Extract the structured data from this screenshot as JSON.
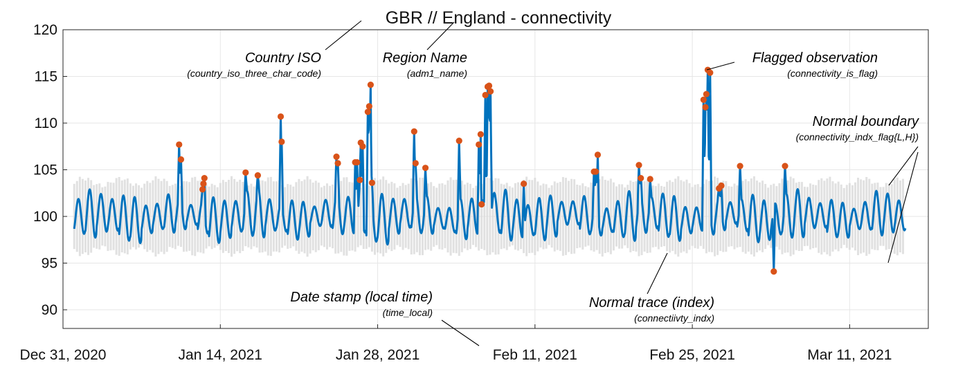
{
  "chart_data": {
    "type": "line",
    "title": "GBR // England - connectivity",
    "xlabel": "",
    "ylabel": "",
    "x_range": [
      "2020-12-31",
      "2021-03-18"
    ],
    "ylim": [
      88,
      120
    ],
    "y_ticks": [
      90,
      95,
      100,
      105,
      110,
      115,
      120
    ],
    "x_ticks": [
      {
        "date": "2020-12-31",
        "label": "Dec 31, 2020"
      },
      {
        "date": "2021-01-14",
        "label": "Jan 14, 2021"
      },
      {
        "date": "2021-01-28",
        "label": "Jan 28, 2021"
      },
      {
        "date": "2021-02-11",
        "label": "Feb 11, 2021"
      },
      {
        "date": "2021-02-25",
        "label": "Feb 25, 2021"
      },
      {
        "date": "2021-03-11",
        "label": "Mar 11, 2021"
      }
    ],
    "grid": true,
    "colors": {
      "trace": "#0072BD",
      "flag": "#D95319",
      "boundary": "#d9d9d9",
      "grid": "#e6e6e6"
    },
    "series": [
      {
        "role": "trace",
        "sampling": "hourly",
        "start": "2021-01-01T00:00",
        "end": "2021-03-15T23:00",
        "base_level": 100,
        "daily_amplitude": 2.2
      },
      {
        "role": "boundary",
        "low_level": 96,
        "high_level": 104
      }
    ],
    "flagged_points": [
      {
        "t": "2021-01-10T08:00",
        "y": 107.7
      },
      {
        "t": "2021-01-10T12:00",
        "y": 106.1
      },
      {
        "t": "2021-01-12T10:00",
        "y": 102.9
      },
      {
        "t": "2021-01-12T12:00",
        "y": 103.5
      },
      {
        "t": "2021-01-12T14:00",
        "y": 104.1
      },
      {
        "t": "2021-01-16T06:00",
        "y": 104.7
      },
      {
        "t": "2021-01-17T08:00",
        "y": 104.4
      },
      {
        "t": "2021-01-19T09:00",
        "y": 110.7
      },
      {
        "t": "2021-01-19T11:00",
        "y": 108.0
      },
      {
        "t": "2021-01-24T08:00",
        "y": 106.4
      },
      {
        "t": "2021-01-24T11:00",
        "y": 105.7
      },
      {
        "t": "2021-01-26T00:00",
        "y": 105.8
      },
      {
        "t": "2021-01-26T04:00",
        "y": 105.8
      },
      {
        "t": "2021-01-26T10:00",
        "y": 103.9
      },
      {
        "t": "2021-01-26T12:00",
        "y": 107.9
      },
      {
        "t": "2021-01-26T16:00",
        "y": 107.5
      },
      {
        "t": "2021-01-27T03:00",
        "y": 111.2
      },
      {
        "t": "2021-01-27T06:00",
        "y": 111.8
      },
      {
        "t": "2021-01-27T09:00",
        "y": 114.1
      },
      {
        "t": "2021-01-27T12:00",
        "y": 103.6
      },
      {
        "t": "2021-01-31T06:00",
        "y": 109.1
      },
      {
        "t": "2021-01-31T09:00",
        "y": 105.7
      },
      {
        "t": "2021-02-01T06:00",
        "y": 105.2
      },
      {
        "t": "2021-02-04T06:00",
        "y": 108.1
      },
      {
        "t": "2021-02-06T00:00",
        "y": 107.7
      },
      {
        "t": "2021-02-06T04:00",
        "y": 108.8
      },
      {
        "t": "2021-02-06T06:00",
        "y": 101.3
      },
      {
        "t": "2021-02-06T14:00",
        "y": 113.0
      },
      {
        "t": "2021-02-06T19:00",
        "y": 113.9
      },
      {
        "t": "2021-02-06T22:00",
        "y": 114.0
      },
      {
        "t": "2021-02-07T01:00",
        "y": 113.4
      },
      {
        "t": "2021-02-10T00:00",
        "y": 103.5
      },
      {
        "t": "2021-02-16T06:00",
        "y": 104.8
      },
      {
        "t": "2021-02-16T10:00",
        "y": 104.8
      },
      {
        "t": "2021-02-16T14:00",
        "y": 106.6
      },
      {
        "t": "2021-02-20T06:00",
        "y": 105.5
      },
      {
        "t": "2021-02-20T10:00",
        "y": 104.1
      },
      {
        "t": "2021-02-21T06:00",
        "y": 104.0
      },
      {
        "t": "2021-02-26T00:00",
        "y": 112.5
      },
      {
        "t": "2021-02-26T04:00",
        "y": 111.7
      },
      {
        "t": "2021-02-26T06:00",
        "y": 113.1
      },
      {
        "t": "2021-02-26T09:00",
        "y": 115.7
      },
      {
        "t": "2021-02-26T14:00",
        "y": 115.4
      },
      {
        "t": "2021-02-27T09:00",
        "y": 103.0
      },
      {
        "t": "2021-02-27T14:00",
        "y": 103.3
      },
      {
        "t": "2021-03-01T06:00",
        "y": 105.4
      },
      {
        "t": "2021-03-04T06:00",
        "y": 94.1
      },
      {
        "t": "2021-03-05T06:00",
        "y": 105.4
      }
    ],
    "annotations": [
      {
        "id": "country",
        "main": "Country ISO",
        "sub": "(country_iso_three_char_code)"
      },
      {
        "id": "region",
        "main": "Region Name",
        "sub": "(adm1_name)"
      },
      {
        "id": "flag",
        "main": "Flagged observation",
        "sub": "(connectivity_is_flag)"
      },
      {
        "id": "boundary",
        "main": "Normal boundary",
        "sub": "(connectivity_indx_flag{L,H})"
      },
      {
        "id": "date",
        "main": "Date stamp (local time)",
        "sub": "(time_local)"
      },
      {
        "id": "trace",
        "main": "Normal trace (index)",
        "sub": "(connectiivty_indx)"
      }
    ]
  }
}
